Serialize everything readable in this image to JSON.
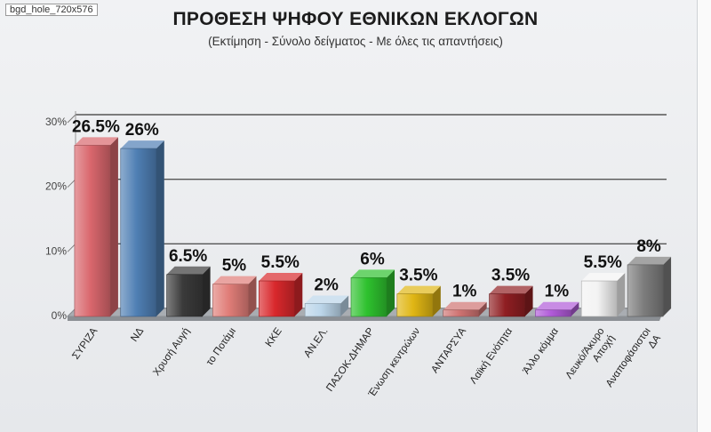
{
  "watermark": "bgd_hole_720x576",
  "title": "ΠΡΟΘΕΣΗ ΨΗΦΟΥ ΕΘΝΙΚΩΝ ΕΚΛΟΓΩΝ",
  "subtitle": "(Εκτίμηση - Σύνολο δείγματος - Με όλες τις απαντήσεις)",
  "chart_data": {
    "type": "bar",
    "title": "ΠΡΟΘΕΣΗ ΨΗΦΟΥ ΕΘΝΙΚΩΝ ΕΚΛΟΓΩΝ",
    "subtitle": "(Εκτίμηση - Σύνολο δείγματος - Με όλες τις απαντήσεις)",
    "ylim": [
      0,
      30
    ],
    "yticks": [
      "0%",
      "10%",
      "20%",
      "30%"
    ],
    "grid": true,
    "categories": [
      "ΣΥΡΙΖΑ",
      "ΝΔ",
      "Χρυσή Αυγή",
      "το Ποτάμι",
      "ΚΚΕ",
      "ΑΝ.ΕΛ.",
      "ΠΑΣΟΚ-ΔΗΜΑΡ",
      "Ένωση κεντρώων",
      "ΑΝΤΑΡΣΥΑ",
      "Λαϊκή Ενότητα",
      "Άλλο κόμμα",
      "Λευκό/Άκυρο Αποχή",
      "Αναποφάσιστοι ΔΑ"
    ],
    "values": [
      26.5,
      26,
      6.5,
      5,
      5.5,
      2,
      6,
      3.5,
      1,
      3.5,
      1,
      5.5,
      8
    ],
    "value_labels": [
      "26.5%",
      "26%",
      "6.5%",
      "5%",
      "5.5%",
      "2%",
      "6%",
      "3.5%",
      "1%",
      "3.5%",
      "1%",
      "5.5%",
      "8%"
    ],
    "colors": [
      "#d9676d",
      "#4f7fb4",
      "#3a3a3a",
      "#e07d78",
      "#d9282c",
      "#bcd6ea",
      "#2ec12e",
      "#e0b614",
      "#cf7372",
      "#8f1e22",
      "#b05ad8",
      "#f3f3f3",
      "#7d7d7d"
    ]
  }
}
